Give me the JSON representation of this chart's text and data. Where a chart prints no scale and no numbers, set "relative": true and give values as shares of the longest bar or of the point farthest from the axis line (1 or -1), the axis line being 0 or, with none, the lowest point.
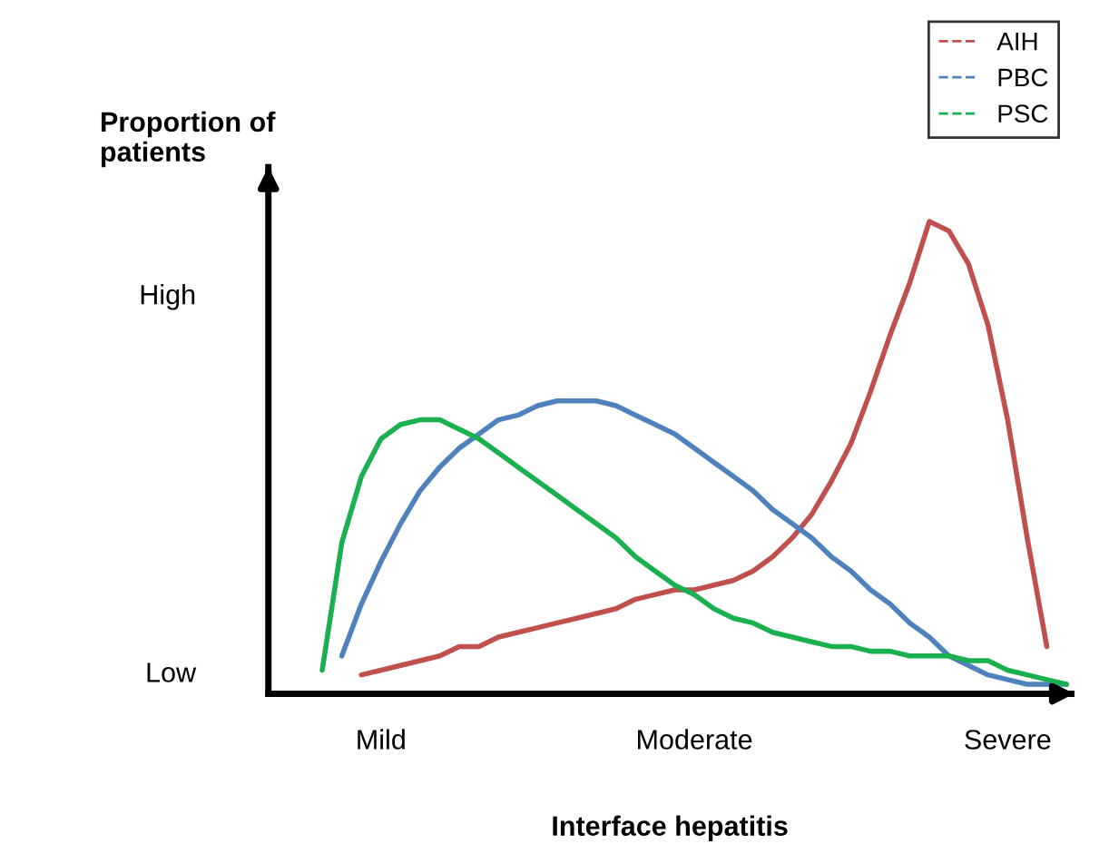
{
  "chart_data": {
    "type": "line",
    "relative": true,
    "xlabel": "Interface hepatitis",
    "ylabel": "Proportion of\npatients",
    "categories": [
      null,
      null,
      null,
      "Mild",
      null,
      null,
      null,
      null,
      null,
      null,
      null,
      null,
      null,
      null,
      null,
      null,
      null,
      null,
      null,
      "Moderate",
      null,
      null,
      null,
      null,
      null,
      null,
      null,
      null,
      null,
      null,
      null,
      null,
      null,
      null,
      null,
      "Severe",
      null,
      null,
      null
    ],
    "annotations": [
      "Low",
      "High"
    ],
    "series": [
      {
        "name": "AIH",
        "color": "#c0504d",
        "values": [
          null,
          null,
          0.04,
          0.05,
          0.06,
          0.07,
          0.08,
          0.1,
          0.1,
          0.12,
          0.13,
          0.14,
          0.15,
          0.16,
          0.17,
          0.18,
          0.2,
          0.21,
          0.22,
          0.22,
          0.23,
          0.24,
          0.26,
          0.29,
          0.33,
          0.38,
          0.45,
          0.53,
          0.64,
          0.76,
          0.87,
          1,
          0.98,
          0.91,
          0.78,
          0.58,
          0.33,
          0.1,
          null
        ]
      },
      {
        "name": "PBC",
        "color": "#4f81bd",
        "values": [
          null,
          0.08,
          0.19,
          0.28,
          0.36,
          0.43,
          0.48,
          0.52,
          0.55,
          0.58,
          0.59,
          0.61,
          0.62,
          0.62,
          0.62,
          0.61,
          0.59,
          0.57,
          0.55,
          0.52,
          0.49,
          0.46,
          0.43,
          0.39,
          0.36,
          0.33,
          0.29,
          0.26,
          0.22,
          0.19,
          0.15,
          0.12,
          0.08,
          0.06,
          0.04,
          0.03,
          0.02,
          0.02,
          0.02
        ]
      },
      {
        "name": "PSC",
        "color": "#1aaf4f",
        "values": [
          0.05,
          0.32,
          0.46,
          0.54,
          0.57,
          0.58,
          0.58,
          0.56,
          0.54,
          0.51,
          0.48,
          0.45,
          0.42,
          0.39,
          0.36,
          0.33,
          0.29,
          0.26,
          0.23,
          0.21,
          0.18,
          0.16,
          0.15,
          0.13,
          0.12,
          0.11,
          0.1,
          0.1,
          0.09,
          0.09,
          0.08,
          0.08,
          0.08,
          0.07,
          0.07,
          0.05,
          0.04,
          0.03,
          0.02
        ]
      }
    ],
    "legend": "top right",
    "line_style": "solid"
  }
}
